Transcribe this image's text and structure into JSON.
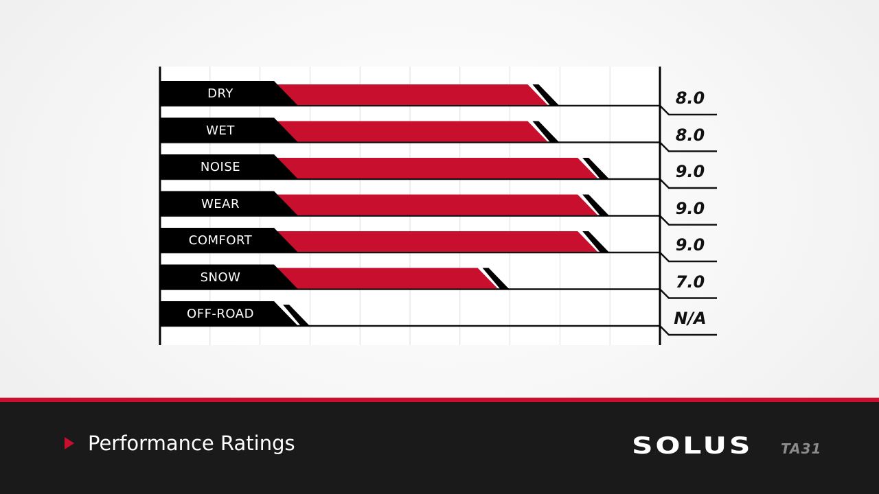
{
  "chart_data": {
    "type": "bar",
    "orientation": "horizontal",
    "title": "Performance Ratings",
    "categories": [
      "DRY",
      "WET",
      "NOISE",
      "WEAR",
      "COMFORT",
      "SNOW",
      "OFF-ROAD"
    ],
    "values": [
      8.0,
      8.0,
      9.0,
      9.0,
      9.0,
      7.0,
      null
    ],
    "value_labels": [
      "8.0",
      "8.0",
      "9.0",
      "9.0",
      "9.0",
      "7.0",
      "N/A"
    ],
    "xlim": [
      0,
      10
    ],
    "grid": true,
    "xlabel": "",
    "ylabel": "",
    "bar_color": "#c8102e"
  },
  "rows": [
    {
      "label": "DRY",
      "value": "8.0"
    },
    {
      "label": "WET",
      "value": "8.0"
    },
    {
      "label": "NOISE",
      "value": "9.0"
    },
    {
      "label": "WEAR",
      "value": "9.0"
    },
    {
      "label": "COMFORT",
      "value": "9.0"
    },
    {
      "label": "SNOW",
      "value": "7.0"
    },
    {
      "label": "OFF-ROAD",
      "value": "N/A"
    }
  ],
  "footer": {
    "section_title": "Performance Ratings",
    "icon": "play-triangle-icon",
    "brand": "SOLUS",
    "model": "TA31"
  },
  "colors": {
    "accent_red": "#c8102e",
    "footer_bg": "#1a1a1a",
    "label_bg": "#000000"
  }
}
